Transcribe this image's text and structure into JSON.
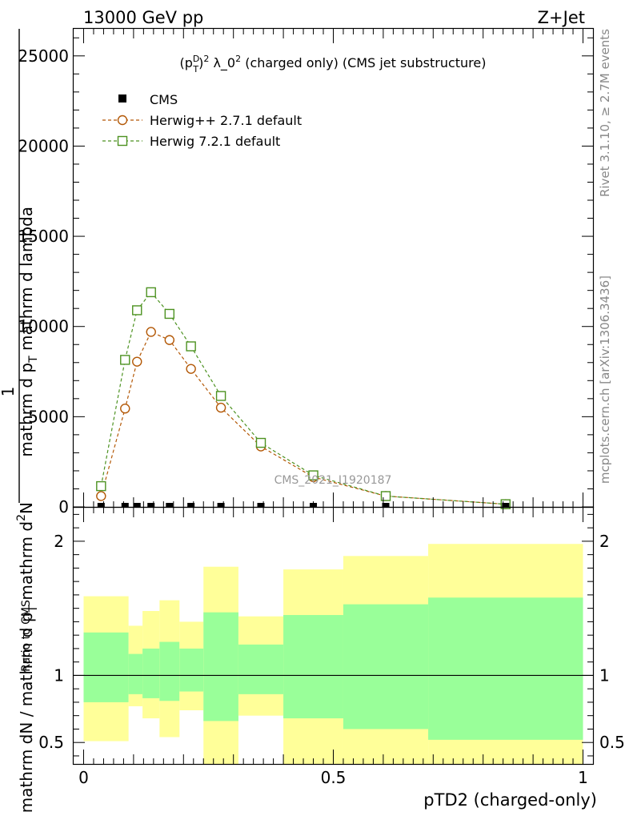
{
  "header": {
    "left": "13000 GeV pp",
    "right": "Z+Jet"
  },
  "side_labels": {
    "rivet": "Rivet 3.1.10, ≥ 2.7M events",
    "mcplots": "mcplots.cern.ch [arXiv:1306.3436]"
  },
  "watermark": "CMS_2021_I1920187",
  "colors": {
    "cms": "#000000",
    "herwig_pp": "#b35806",
    "herwig7": "#4d9221",
    "band_outer": "#ffff99",
    "band_inner": "#99ff99"
  },
  "chart_data": [
    {
      "type": "line",
      "title": "(p_T^D)^2 λ_0^2 (charged only) (CMS jet substructure)",
      "title_parts": {
        "base": "(p",
        "sup": "D",
        "sub": "T",
        "close": ")",
        "pow": "2",
        "lambda": " λ_0",
        "pow2": "2",
        "rest": " (charged only) (CMS jet substructure)"
      },
      "ylabel": "1 / mathrm dN / mathrm d p_T mathrm d^2N / mathrm d p_T mathrm d lambda",
      "ylabel_parts": {
        "numerator": "1",
        "frac_line": "mathrm dN / mathrm d p",
        "frac_sub": "T",
        "frac_rest": " mathrm d",
        "frac_sup": "2",
        "frac_end": "N",
        "denom_main": "mathrm d p",
        "denom_sub": "T",
        "denom_rest": " mathrm d lambda"
      },
      "ylim": [
        0,
        26500
      ],
      "yticks": [
        0,
        5000,
        10000,
        15000,
        20000,
        25000
      ],
      "ytick_labels": [
        "0",
        "5000",
        "10000",
        "15000",
        "20000",
        "25000"
      ],
      "xlim": [
        -0.02,
        1.02
      ],
      "legend": [
        {
          "label": "CMS",
          "marker": "filled-square"
        },
        {
          "label": "Herwig++ 2.7.1 default",
          "marker": "open-circle"
        },
        {
          "label": "Herwig 7.2.1 default",
          "marker": "open-square"
        }
      ],
      "series": [
        {
          "name": "CMS",
          "x": [
            0.035,
            0.083,
            0.107,
            0.135,
            0.172,
            0.215,
            0.275,
            0.355,
            0.46,
            0.605,
            0.845
          ],
          "values": [
            0,
            0,
            0,
            0,
            0,
            0,
            0,
            0,
            0,
            0,
            0
          ]
        },
        {
          "name": "Herwig++ 2.7.1 default",
          "x": [
            0.035,
            0.083,
            0.107,
            0.135,
            0.172,
            0.215,
            0.275,
            0.355,
            0.46,
            0.605,
            0.845
          ],
          "values": [
            600,
            5450,
            8050,
            9700,
            9250,
            7650,
            5500,
            3350,
            1650,
            600,
            150
          ]
        },
        {
          "name": "Herwig 7.2.1 default",
          "x": [
            0.035,
            0.083,
            0.107,
            0.135,
            0.172,
            0.215,
            0.275,
            0.355,
            0.46,
            0.605,
            0.845
          ],
          "values": [
            1150,
            8150,
            10900,
            11900,
            10700,
            8900,
            6150,
            3550,
            1750,
            600,
            150
          ]
        }
      ]
    },
    {
      "type": "area",
      "ylabel": "Ratio to CMS",
      "xlabel": "pTD2 (charged-only)",
      "ylim": [
        0.34,
        2.25
      ],
      "yticks": [
        0.5,
        1,
        2
      ],
      "ytick_labels": [
        "0.5",
        "1",
        "2"
      ],
      "xlim": [
        -0.02,
        1.02
      ],
      "xticks": [
        0,
        0.5,
        1
      ],
      "xtick_labels": [
        "0",
        "0.5",
        "1"
      ],
      "reference_line": 1,
      "bins": [
        {
          "lo": 0.0,
          "hi": 0.09,
          "outer": [
            0.51,
            1.59
          ],
          "inner": [
            0.8,
            1.32
          ]
        },
        {
          "lo": 0.09,
          "hi": 0.118,
          "outer": [
            0.77,
            1.37
          ],
          "inner": [
            0.86,
            1.16
          ]
        },
        {
          "lo": 0.118,
          "hi": 0.152,
          "outer": [
            0.68,
            1.48
          ],
          "inner": [
            0.83,
            1.2
          ]
        },
        {
          "lo": 0.152,
          "hi": 0.192,
          "outer": [
            0.54,
            1.56
          ],
          "inner": [
            0.81,
            1.25
          ]
        },
        {
          "lo": 0.192,
          "hi": 0.24,
          "outer": [
            0.74,
            1.4
          ],
          "inner": [
            0.88,
            1.2
          ]
        },
        {
          "lo": 0.24,
          "hi": 0.31,
          "outer": [
            0.34,
            1.81
          ],
          "inner": [
            0.66,
            1.47
          ]
        },
        {
          "lo": 0.31,
          "hi": 0.4,
          "outer": [
            0.7,
            1.44
          ],
          "inner": [
            0.86,
            1.23
          ]
        },
        {
          "lo": 0.4,
          "hi": 0.52,
          "outer": [
            0.34,
            1.79
          ],
          "inner": [
            0.68,
            1.45
          ]
        },
        {
          "lo": 0.52,
          "hi": 0.69,
          "outer": [
            0.34,
            1.89
          ],
          "inner": [
            0.6,
            1.53
          ]
        },
        {
          "lo": 0.69,
          "hi": 1.0,
          "outer": [
            0.34,
            1.98
          ],
          "inner": [
            0.52,
            1.58
          ]
        }
      ]
    }
  ]
}
